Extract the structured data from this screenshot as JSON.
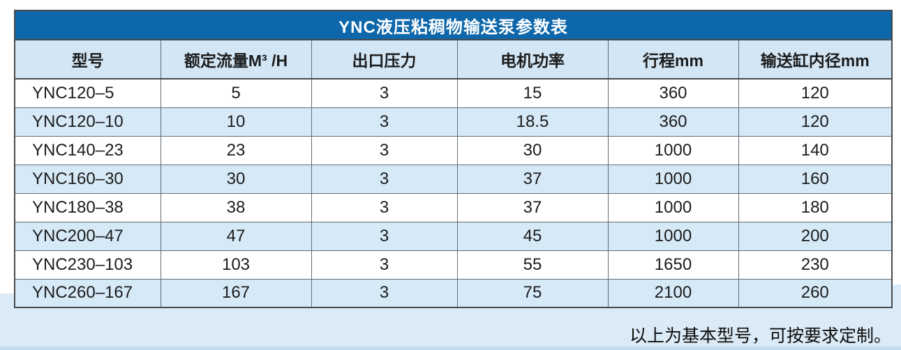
{
  "table": {
    "title": "YNC液压粘稠物输送泵参数表",
    "columns": [
      "型号",
      "额定流量M³ /H",
      "出口压力",
      "电机功率",
      "行程mm",
      "输送缸内径mm"
    ],
    "rows": [
      [
        "YNC120–5",
        "5",
        "3",
        "15",
        "360",
        "120"
      ],
      [
        "YNC120–10",
        "10",
        "3",
        "18.5",
        "360",
        "120"
      ],
      [
        "YNC140–23",
        "23",
        "3",
        "30",
        "1000",
        "140"
      ],
      [
        "YNC160–30",
        "30",
        "3",
        "37",
        "1000",
        "160"
      ],
      [
        "YNC180–38",
        "38",
        "3",
        "37",
        "1000",
        "180"
      ],
      [
        "YNC200–47",
        "47",
        "3",
        "45",
        "1000",
        "200"
      ],
      [
        "YNC230–103",
        "103",
        "3",
        "55",
        "1650",
        "230"
      ],
      [
        "YNC260–167",
        "167",
        "3",
        "75",
        "2100",
        "260"
      ]
    ]
  },
  "footer": {
    "note": "以上为基本型号，可按要求定制。"
  },
  "colors": {
    "title_bg": "#0e67aa",
    "title_text": "#ffffff",
    "header_bg": "#d2e6f5",
    "row_alt_bg": "#d6e9f7",
    "band_bg": "#daeaf6",
    "band_edge": "#c3dcef",
    "border_dark": "#4a4a4a",
    "grid": "#5f6b74"
  }
}
